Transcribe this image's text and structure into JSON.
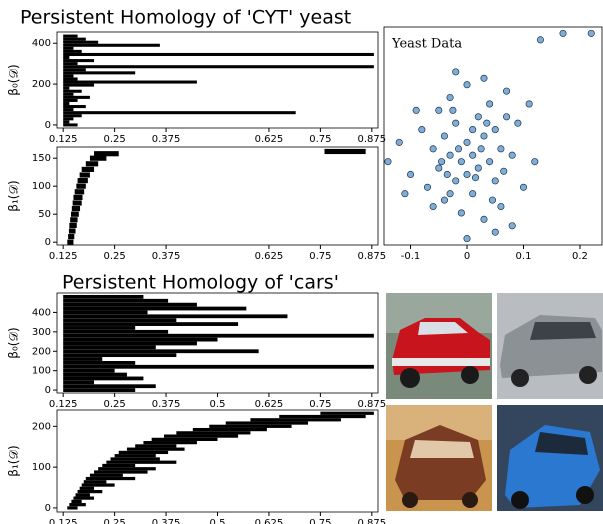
{
  "chart_data": [
    {
      "type": "barcode",
      "title": "Persistent Homology of 'CYT' yeast",
      "ylabel": "β₀(𝒟)",
      "color": "#000000",
      "xlim": [
        0.11,
        0.89
      ],
      "xticks": [
        0.125,
        0.25,
        0.375,
        0.625,
        0.75,
        0.875
      ],
      "ylim": [
        -15,
        455
      ],
      "yticks": [
        0,
        200,
        400
      ],
      "y": [
        0,
        15,
        30,
        45,
        60,
        75,
        90,
        105,
        120,
        135,
        150,
        165,
        180,
        195,
        210,
        225,
        240,
        255,
        270,
        285,
        300,
        315,
        330,
        345,
        360,
        375,
        390,
        405,
        420,
        435
      ],
      "births": [
        0.125,
        0.125,
        0.125,
        0.125,
        0.125,
        0.125,
        0.125,
        0.125,
        0.125,
        0.125,
        0.125,
        0.125,
        0.125,
        0.125,
        0.125,
        0.125,
        0.125,
        0.125,
        0.125,
        0.125,
        0.125,
        0.125,
        0.125,
        0.125,
        0.125,
        0.125,
        0.125,
        0.125,
        0.125,
        0.125
      ],
      "deaths": [
        0.16,
        0.14,
        0.15,
        0.17,
        0.69,
        0.15,
        0.18,
        0.14,
        0.16,
        0.19,
        0.15,
        0.17,
        0.14,
        0.2,
        0.45,
        0.16,
        0.15,
        0.3,
        0.18,
        0.88,
        0.16,
        0.2,
        0.14,
        0.88,
        0.17,
        0.15,
        0.36,
        0.21,
        0.18,
        0.16
      ]
    },
    {
      "type": "barcode",
      "ylabel": "β₁(𝒟)",
      "color": "#000000",
      "xlim": [
        0.11,
        0.89
      ],
      "xticks": [
        0.125,
        0.25,
        0.375,
        0.625,
        0.75,
        0.875
      ],
      "ylim": [
        -5,
        170
      ],
      "yticks": [
        0,
        50,
        100,
        150
      ],
      "y": [
        0,
        10,
        20,
        30,
        40,
        50,
        60,
        70,
        80,
        90,
        100,
        110,
        120,
        130,
        140,
        150,
        158,
        162
      ],
      "births": [
        0.135,
        0.137,
        0.139,
        0.14,
        0.142,
        0.144,
        0.146,
        0.148,
        0.15,
        0.153,
        0.157,
        0.16,
        0.165,
        0.17,
        0.18,
        0.19,
        0.2,
        0.76
      ],
      "deaths": [
        0.15,
        0.152,
        0.155,
        0.158,
        0.16,
        0.163,
        0.166,
        0.17,
        0.172,
        0.176,
        0.18,
        0.185,
        0.19,
        0.2,
        0.21,
        0.23,
        0.26,
        0.86
      ]
    },
    {
      "type": "scatter",
      "title": "Yeast Data",
      "color": "#6a9fcf",
      "xlim": [
        -0.147,
        0.239
      ],
      "xticks": [
        -0.1,
        0,
        0.1,
        0.2
      ],
      "ylim": [
        -0.13,
        0.21
      ],
      "x": [
        -0.14,
        -0.12,
        -0.1,
        -0.08,
        -0.07,
        -0.06,
        -0.05,
        -0.05,
        -0.04,
        -0.04,
        -0.03,
        -0.03,
        -0.02,
        -0.02,
        -0.01,
        -0.01,
        0,
        0,
        0,
        0.01,
        0.01,
        0.02,
        0.02,
        0.03,
        0.03,
        0.04,
        0.04,
        0.05,
        0.05,
        0.06,
        0.06,
        0.07,
        0.08,
        0.08,
        0.09,
        0.1,
        0.11,
        0.12,
        0.13,
        0.17,
        0.22,
        -0.09,
        -0.11,
        -0.02,
        0,
        0.05,
        0.07,
        -0.06,
        0.03,
        -0.03,
        0.01,
        -0.015,
        0.015,
        0.025,
        -0.045,
        0.065,
        -0.025,
        0.035,
        0.045,
        -0.035
      ],
      "y": [
        0,
        0.03,
        -0.02,
        0.05,
        -0.04,
        0.02,
        0.08,
        -0.01,
        0.04,
        -0.06,
        0.01,
        0.1,
        -0.03,
        0.06,
        0,
        -0.08,
        0.03,
        -0.02,
        0.12,
        0.01,
        -0.05,
        0.07,
        -0.01,
        0.04,
        -0.09,
        0,
        0.09,
        -0.03,
        0.05,
        -0.07,
        0.02,
        0.11,
        -0.1,
        0.01,
        0.06,
        -0.04,
        0.09,
        0,
        0.19,
        0.2,
        0.2,
        0.08,
        -0.05,
        0.14,
        -0.12,
        -0.11,
        0.07,
        -0.07,
        0.13,
        -0.05,
        0.05,
        0.02,
        -0.025,
        0.02,
        0,
        -0.015,
        0.08,
        0.06,
        -0.06,
        -0.02
      ]
    },
    {
      "type": "barcode",
      "title": "Persistent Homology of 'cars'",
      "ylabel": "β₀(𝒟)",
      "color": "#000000",
      "xlim": [
        0.11,
        0.89
      ],
      "xticks": [
        0.125,
        0.25,
        0.375,
        0.5,
        0.625,
        0.75,
        0.875
      ],
      "ylim": [
        -15,
        500
      ],
      "yticks": [
        0,
        100,
        200,
        300,
        400
      ],
      "y": [
        0,
        20,
        40,
        60,
        80,
        100,
        120,
        140,
        160,
        180,
        200,
        220,
        240,
        260,
        280,
        300,
        320,
        340,
        360,
        380,
        400,
        420,
        440,
        460,
        480
      ],
      "births": [
        0.125,
        0.125,
        0.125,
        0.125,
        0.125,
        0.125,
        0.125,
        0.125,
        0.125,
        0.125,
        0.125,
        0.125,
        0.125,
        0.125,
        0.125,
        0.125,
        0.125,
        0.125,
        0.125,
        0.125,
        0.125,
        0.125,
        0.125,
        0.125,
        0.125
      ],
      "deaths": [
        0.3,
        0.35,
        0.2,
        0.32,
        0.28,
        0.25,
        0.88,
        0.3,
        0.22,
        0.4,
        0.6,
        0.35,
        0.45,
        0.5,
        0.88,
        0.38,
        0.3,
        0.55,
        0.4,
        0.67,
        0.33,
        0.57,
        0.45,
        0.38,
        0.32
      ]
    },
    {
      "type": "barcode",
      "ylabel": "β₁(𝒟)",
      "color": "#000000",
      "xlim": [
        0.11,
        0.89
      ],
      "xticks": [
        0.125,
        0.25,
        0.375,
        0.5,
        0.625,
        0.75,
        0.875
      ],
      "ylim": [
        -10,
        240
      ],
      "yticks": [
        0,
        100,
        200
      ],
      "y": [
        0,
        8,
        16,
        24,
        32,
        40,
        48,
        56,
        64,
        72,
        80,
        88,
        96,
        104,
        112,
        120,
        128,
        136,
        144,
        152,
        160,
        168,
        176,
        184,
        192,
        200,
        208,
        216,
        224,
        232
      ],
      "births": [
        0.135,
        0.14,
        0.145,
        0.15,
        0.155,
        0.16,
        0.165,
        0.17,
        0.175,
        0.18,
        0.19,
        0.2,
        0.21,
        0.22,
        0.23,
        0.24,
        0.25,
        0.26,
        0.28,
        0.3,
        0.32,
        0.34,
        0.37,
        0.4,
        0.44,
        0.48,
        0.52,
        0.58,
        0.65,
        0.75
      ],
      "deaths": [
        0.16,
        0.18,
        0.17,
        0.2,
        0.19,
        0.22,
        0.2,
        0.25,
        0.23,
        0.3,
        0.27,
        0.33,
        0.35,
        0.3,
        0.4,
        0.36,
        0.35,
        0.38,
        0.42,
        0.4,
        0.45,
        0.5,
        0.55,
        0.58,
        0.62,
        0.68,
        0.72,
        0.8,
        0.86,
        0.88
      ]
    }
  ]
}
